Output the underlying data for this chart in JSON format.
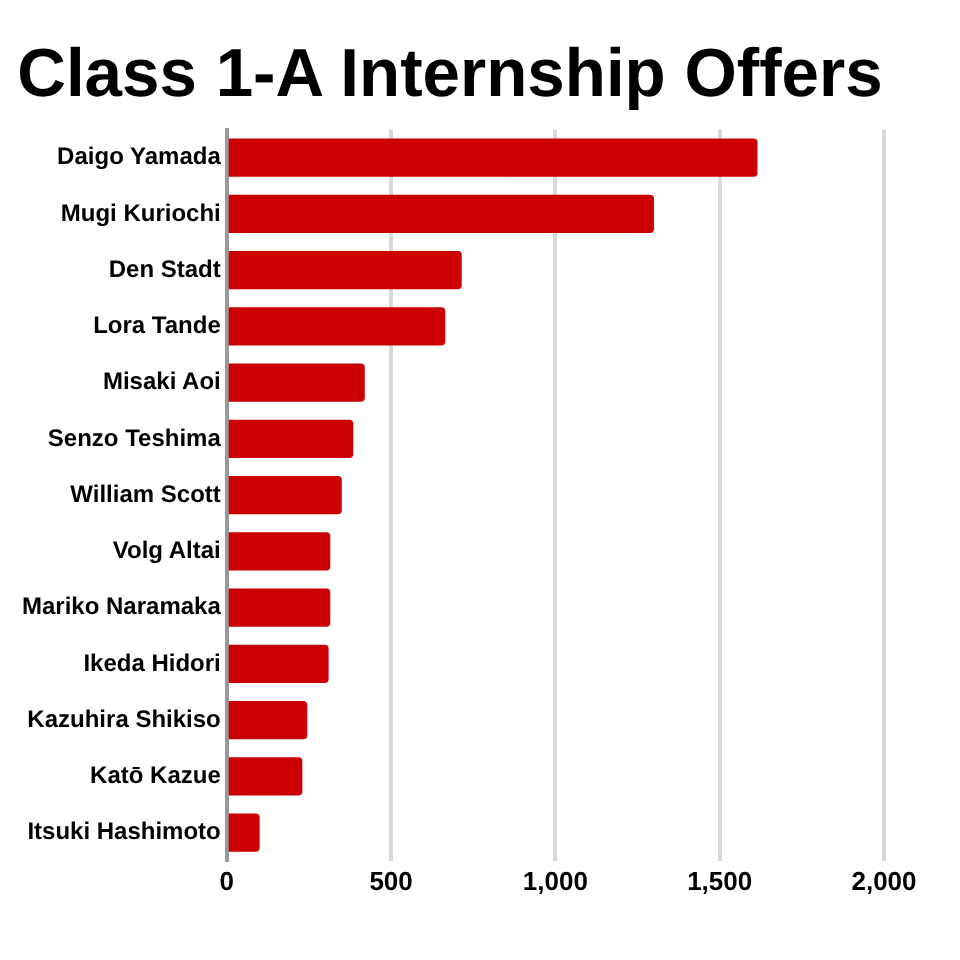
{
  "chart_data": {
    "type": "bar",
    "orientation": "horizontal",
    "title": "Class 1-A Internship Offers",
    "categories": [
      "Daigo Yamada",
      "Mugi Kuriochi",
      "Den Stadt",
      "Lora Tande",
      "Misaki Aoi",
      "Senzo Teshima",
      "William Scott",
      "Volg Altai",
      "Mariko Naramaka",
      "Ikeda Hidori",
      "Kazuhira Shikiso",
      "Katō Kazue",
      "Itsuki Hashimoto"
    ],
    "values": [
      1615,
      1300,
      715,
      665,
      420,
      385,
      350,
      315,
      315,
      310,
      245,
      230,
      100
    ],
    "color": "#cc0000",
    "xlim": [
      0,
      2000
    ],
    "xticks": [
      0,
      {
        "value": 500,
        "label": "500"
      },
      {
        "value": 1000,
        "label": "1,000"
      },
      {
        "value": 1500,
        "label": "1,500"
      },
      {
        "value": 2000,
        "label": "2,000"
      }
    ],
    "grid": "x"
  }
}
